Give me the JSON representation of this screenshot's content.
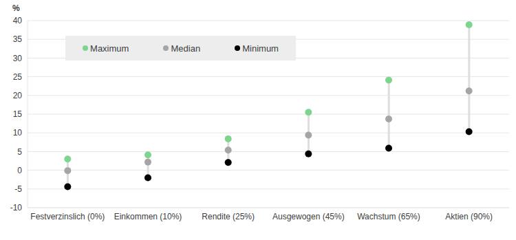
{
  "chart_data": {
    "type": "scatter",
    "y_label": "%",
    "categories": [
      "Festverzinslich (0%)",
      "Einkommen (10%)",
      "Rendite (25%)",
      "Ausgewogen (45%)",
      "Wachstum (65%)",
      "Aktien (90%)"
    ],
    "series": [
      {
        "name": "Maximum",
        "color": "#7dd68e",
        "values": [
          3.0,
          4.1,
          8.4,
          15.5,
          24.1,
          38.9
        ]
      },
      {
        "name": "Median",
        "color": "#a5a5a5",
        "values": [
          -0.1,
          2.2,
          5.4,
          9.4,
          13.7,
          21.2
        ]
      },
      {
        "name": "Minimum",
        "color": "#000000",
        "values": [
          -4.4,
          -2.0,
          2.1,
          4.4,
          5.9,
          10.3
        ]
      }
    ],
    "ylim": [
      -10,
      40
    ],
    "yticks": [
      -10,
      -5,
      0,
      5,
      10,
      15,
      20,
      25,
      30,
      35,
      40
    ],
    "grid": true,
    "legend": "upper left",
    "marker": "circle"
  }
}
